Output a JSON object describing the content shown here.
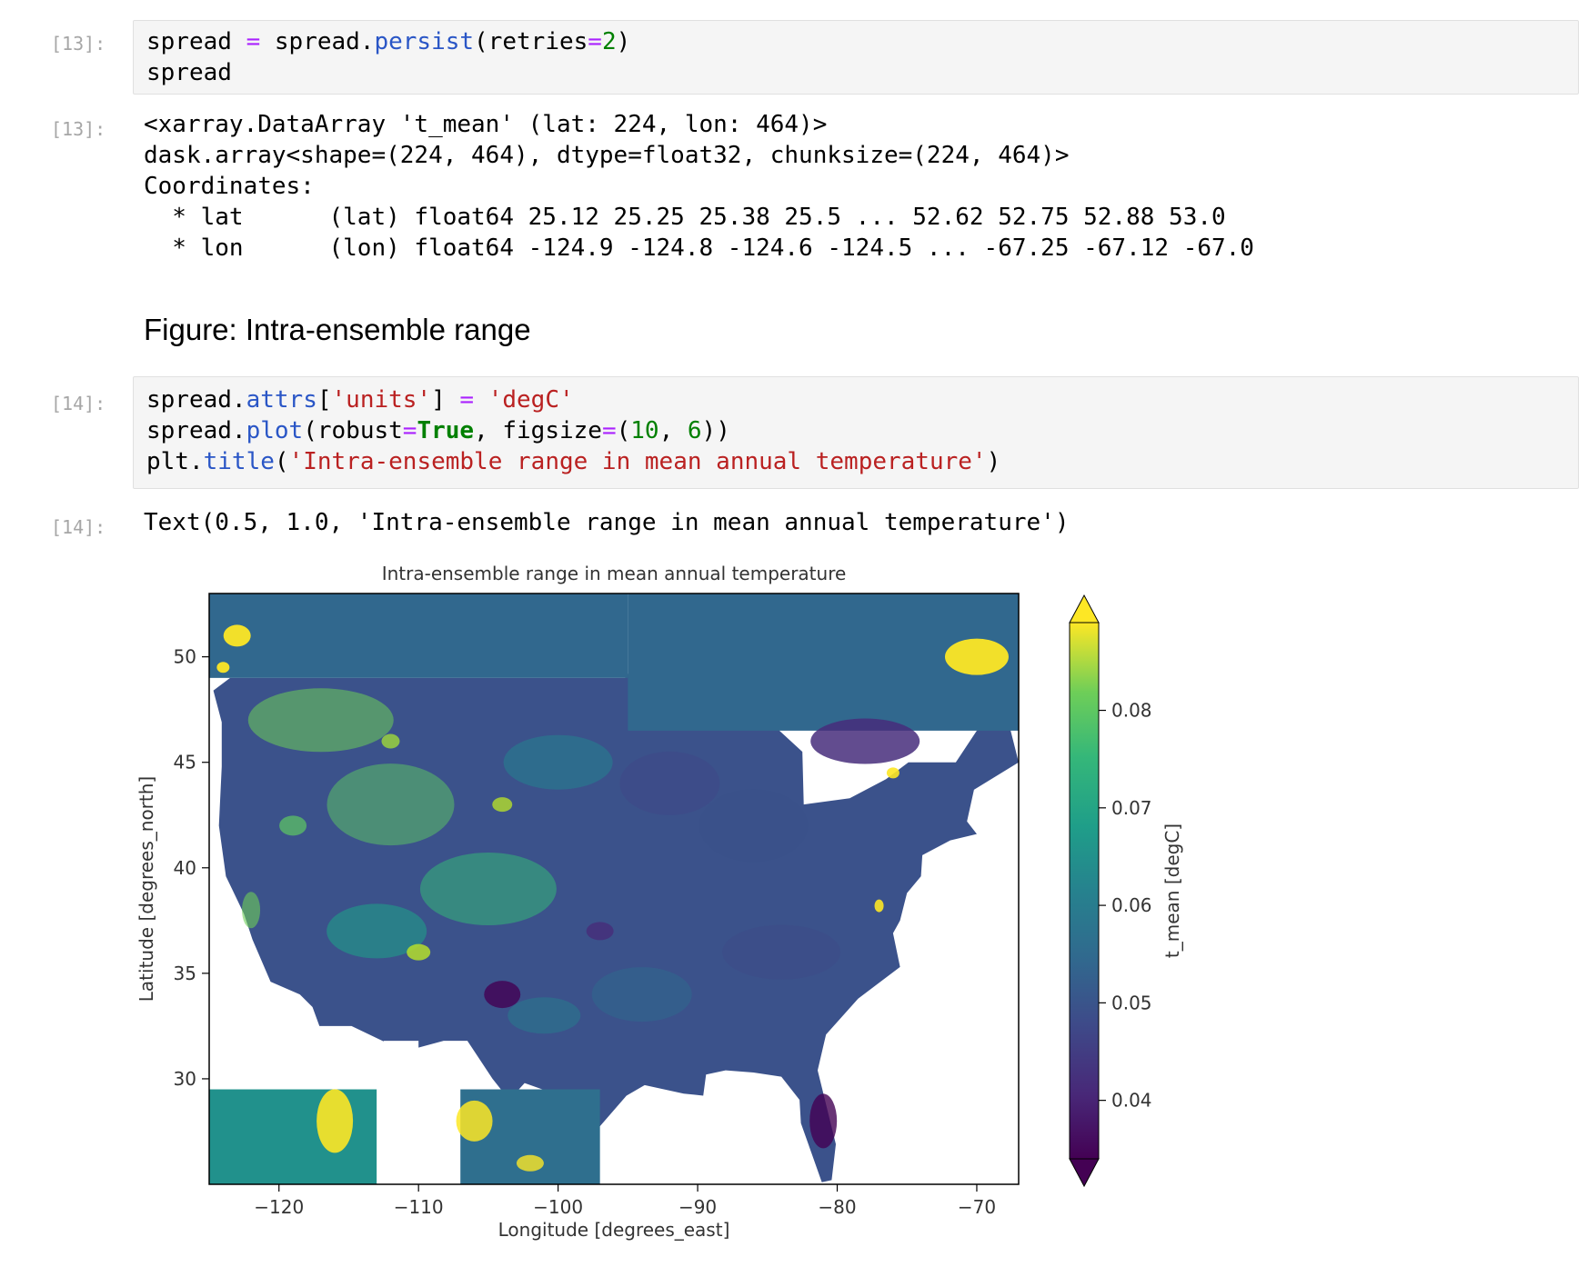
{
  "cells": [
    {
      "in_prompt": "[13]:",
      "code": [
        [
          [
            "plain",
            "spread "
          ],
          [
            "op",
            "="
          ],
          [
            "plain",
            " spread."
          ],
          [
            "attr",
            "persist"
          ],
          [
            "plain",
            "(retries"
          ],
          [
            "op",
            "="
          ],
          [
            "num",
            "2"
          ],
          [
            "plain",
            ")"
          ]
        ],
        [
          [
            "plain",
            "spread"
          ]
        ]
      ],
      "out_prompt": "[13]:",
      "output": [
        "<xarray.DataArray 't_mean' (lat: 224, lon: 464)>",
        "dask.array<shape=(224, 464), dtype=float32, chunksize=(224, 464)>",
        "Coordinates:",
        "  * lat      (lat) float64 25.12 25.25 25.38 25.5 ... 52.62 52.75 52.88 53.0",
        "  * lon      (lon) float64 -124.9 -124.8 -124.6 -124.5 ... -67.25 -67.12 -67.0"
      ]
    },
    {
      "markdown_heading": "Figure: Intra-ensemble range"
    },
    {
      "in_prompt": "[14]:",
      "code": [
        [
          [
            "plain",
            "spread."
          ],
          [
            "attr",
            "attrs"
          ],
          [
            "plain",
            "["
          ],
          [
            "str",
            "'units'"
          ],
          [
            "plain",
            "] "
          ],
          [
            "op",
            "="
          ],
          [
            "plain",
            " "
          ],
          [
            "str",
            "'degC'"
          ]
        ],
        [
          [
            "plain",
            "spread."
          ],
          [
            "attr",
            "plot"
          ],
          [
            "plain",
            "(robust"
          ],
          [
            "op",
            "="
          ],
          [
            "bool",
            "True"
          ],
          [
            "plain",
            ", figsize"
          ],
          [
            "op",
            "="
          ],
          [
            "plain",
            "("
          ],
          [
            "num",
            "10"
          ],
          [
            "plain",
            ", "
          ],
          [
            "num",
            "6"
          ],
          [
            "plain",
            "))"
          ]
        ],
        [
          [
            "plain",
            "plt."
          ],
          [
            "attr",
            "title"
          ],
          [
            "plain",
            "("
          ],
          [
            "str",
            "'Intra-ensemble range in mean annual temperature'"
          ],
          [
            "plain",
            ")"
          ]
        ]
      ],
      "out_prompt": "[14]:",
      "output": [
        "Text(0.5, 1.0, 'Intra-ensemble range in mean annual temperature')"
      ]
    }
  ],
  "chart_data": {
    "type": "heatmap",
    "title": "Intra-ensemble range in mean annual temperature",
    "xlabel": "Longitude [degrees_east]",
    "ylabel": "Latitude [degrees_north]",
    "colorbar_label": "t_mean [degC]",
    "xlim": [
      -125,
      -67
    ],
    "ylim": [
      25,
      53
    ],
    "xticks": [
      -120,
      -110,
      -100,
      -90,
      -80,
      -70
    ],
    "xtick_labels": [
      "−120",
      "−110",
      "−100",
      "−90",
      "−80",
      "−70"
    ],
    "yticks": [
      30,
      35,
      40,
      45,
      50
    ],
    "ytick_labels": [
      "30",
      "35",
      "40",
      "45",
      "50"
    ],
    "colorbar_range": [
      0.034,
      0.089
    ],
    "colorbar_ticks": [
      0.04,
      0.05,
      0.06,
      0.07,
      0.08
    ],
    "colorbar_tick_labels": [
      "0.04",
      "0.05",
      "0.06",
      "0.07",
      "0.08"
    ],
    "colormap": "viridis",
    "colorbar_extend": "both",
    "grid": false
  }
}
